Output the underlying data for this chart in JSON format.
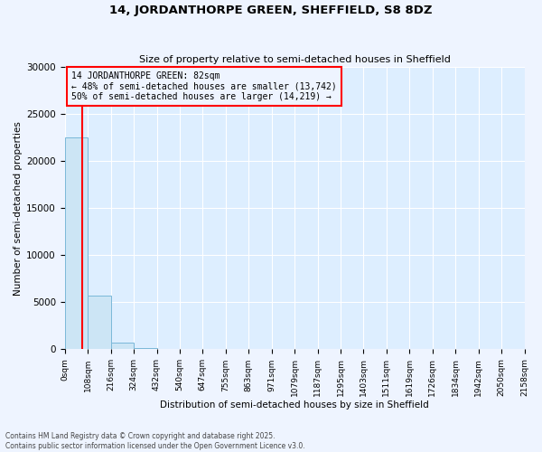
{
  "title": "14, JORDANTHORPE GREEN, SHEFFIELD, S8 8DZ",
  "subtitle": "Size of property relative to semi-detached houses in Sheffield",
  "xlabel": "Distribution of semi-detached houses by size in Sheffield",
  "ylabel": "Number of semi-detached properties",
  "annotation_title": "14 JORDANTHORPE GREEN: 82sqm",
  "annotation_line1": "← 48% of semi-detached houses are smaller (13,742)",
  "annotation_line2": "50% of semi-detached houses are larger (14,219) →",
  "footer_line1": "Contains HM Land Registry data © Crown copyright and database right 2025.",
  "footer_line2": "Contains public sector information licensed under the Open Government Licence v3.0.",
  "property_size": 82,
  "bin_edges": [
    0,
    108,
    216,
    324,
    432,
    540,
    647,
    755,
    863,
    971,
    1079,
    1187,
    1295,
    1403,
    1511,
    1619,
    1726,
    1834,
    1942,
    2050,
    2158
  ],
  "bin_counts": [
    22500,
    5700,
    700,
    150,
    60,
    25,
    12,
    8,
    6,
    4,
    3,
    3,
    2,
    2,
    1,
    1,
    1,
    1,
    1,
    1
  ],
  "bar_color": "#cce5f5",
  "bar_edge_color": "#7ab8d9",
  "vline_color": "red",
  "annotation_box_color": "red",
  "plot_bg_color": "#ddeeff",
  "fig_bg_color": "#eef4ff",
  "ylim": [
    0,
    30000
  ],
  "yticks": [
    0,
    5000,
    10000,
    15000,
    20000,
    25000,
    30000
  ]
}
